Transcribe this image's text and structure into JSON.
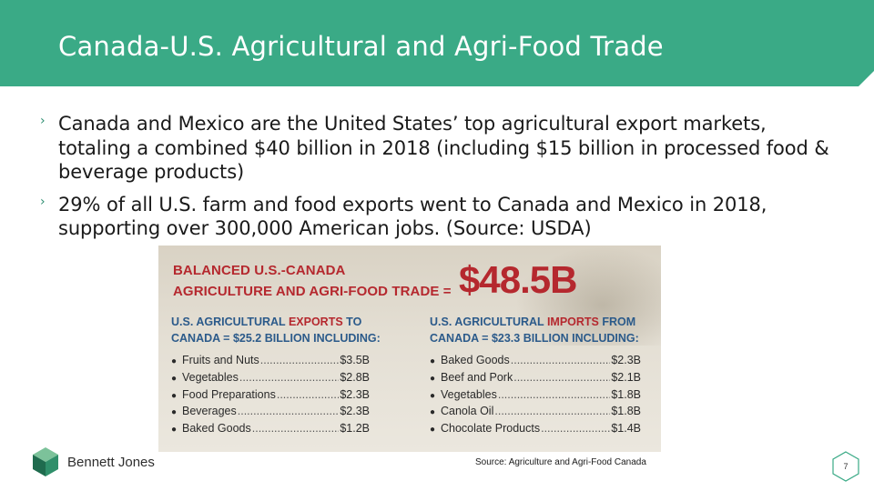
{
  "header": {
    "title": "Canada-U.S. Agricultural and Agri-Food Trade",
    "color": "#3aaa86"
  },
  "bullets": [
    {
      "text": "Canada and Mexico are the United States’ top agricultural export markets, totaling a combined $40 billion in 2018 (including $15 billion in processed food & beverage products)"
    },
    {
      "text": "29% of all U.S. farm and food exports went to Canada and Mexico in 2018, supporting over 300,000 American jobs. (Source: USDA)"
    }
  ],
  "infographic": {
    "headline_line1": "BALANCED U.S.-CANADA",
    "headline_line2": "AGRICULTURE AND AGRI-FOOD TRADE =",
    "total": "$48.5B",
    "exports": {
      "heading_line1_a": "U.S. AGRICULTURAL ",
      "heading_line1_b": "EXPORTS",
      "heading_line1_c": " TO",
      "heading_line2": "CANADA = $25.2 BILLION INCLUDING:",
      "items": [
        {
          "name": "Fruits and Nuts",
          "value": "$3.5B"
        },
        {
          "name": "Vegetables",
          "value": "$2.8B"
        },
        {
          "name": "Food Preparations",
          "value": "$2.3B"
        },
        {
          "name": "Beverages",
          "value": "$2.3B"
        },
        {
          "name": "Baked Goods",
          "value": "$1.2B"
        }
      ]
    },
    "imports": {
      "heading_line1_a": "U.S. AGRICULTURAL ",
      "heading_line1_b": "IMPORTS",
      "heading_line1_c": " FROM",
      "heading_line2": "CANADA = $23.3 BILLION INCLUDING:",
      "items": [
        {
          "name": "Baked Goods",
          "value": "$2.3B"
        },
        {
          "name": "Beef and Pork",
          "value": "$2.1B"
        },
        {
          "name": "Vegetables",
          "value": "$1.8B"
        },
        {
          "name": "Canola Oil",
          "value": "$1.8B"
        },
        {
          "name": "Chocolate Products",
          "value": "$1.4B"
        }
      ]
    },
    "accent_red": "#b5282e",
    "accent_blue": "#2b5a8a"
  },
  "footer": {
    "logo_text": "Bennett Jones",
    "source": "Source: Agriculture and Agri-Food Canada",
    "page_number": "7"
  }
}
